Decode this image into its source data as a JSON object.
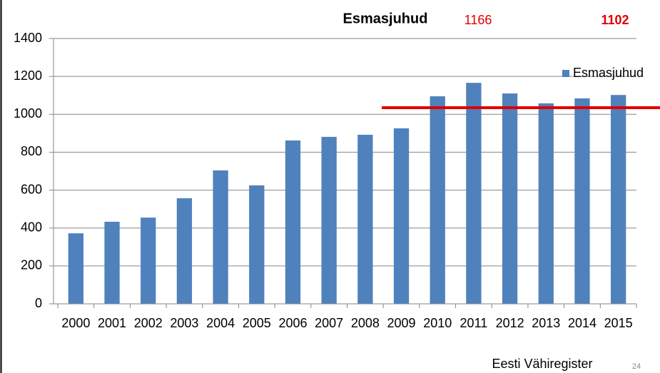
{
  "chart_data": {
    "type": "bar",
    "title": "Esmasjuhud",
    "annotations": [
      "1166",
      "1102"
    ],
    "source": "Eesti Vähiregister",
    "page_number": "24",
    "categories": [
      "2000",
      "2001",
      "2002",
      "2003",
      "2004",
      "2005",
      "2006",
      "2007",
      "2008",
      "2009",
      "2010",
      "2011",
      "2012",
      "2013",
      "2014",
      "2015"
    ],
    "series": [
      {
        "name": "Esmasjuhud",
        "color": "#4f81bd",
        "values": [
          372,
          433,
          455,
          557,
          704,
          625,
          862,
          881,
          892,
          926,
          1095,
          1166,
          1110,
          1058,
          1084,
          1102
        ]
      }
    ],
    "reference_line": {
      "value": 1035,
      "color": "#e00000"
    },
    "ylim": [
      0,
      1400
    ],
    "yticks": [
      0,
      200,
      400,
      600,
      800,
      1000,
      1200,
      1400
    ],
    "grid": true,
    "legend": "top-right"
  }
}
